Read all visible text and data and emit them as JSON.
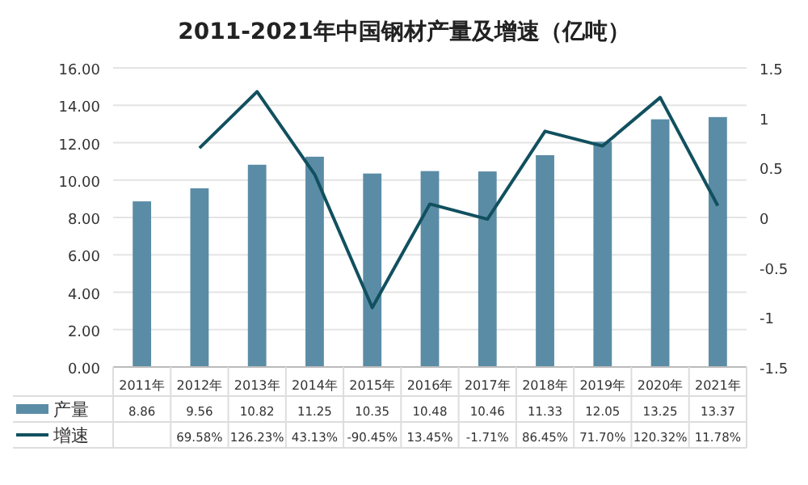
{
  "chart_data": {
    "type": "bar",
    "title": "2011-2021年中国钢材产量及增速（亿吨）",
    "categories": [
      "2011年",
      "2012年",
      "2013年",
      "2014年",
      "2015年",
      "2016年",
      "2017年",
      "2018年",
      "2019年",
      "2020年",
      "2021年"
    ],
    "series": [
      {
        "name": "产量",
        "color": "#5b8ca6",
        "values": [
          8.86,
          9.56,
          10.82,
          11.25,
          10.35,
          10.48,
          10.46,
          11.33,
          12.05,
          13.25,
          13.37
        ],
        "value_labels": [
          "8.86",
          "9.56",
          "10.82",
          "11.25",
          "10.35",
          "10.48",
          "10.46",
          "11.33",
          "12.05",
          "13.25",
          "13.37"
        ]
      },
      {
        "name": "增速",
        "type": "line",
        "axis": "y2",
        "color": "#11505f",
        "values": [
          null,
          0.6958,
          1.2623,
          0.4313,
          -0.9045,
          0.1345,
          -0.0171,
          0.8645,
          0.717,
          1.2032,
          0.1178
        ],
        "value_labels": [
          null,
          "69.58%",
          "126.23%",
          "43.13%",
          "-90.45%",
          "13.45%",
          "-1.71%",
          "86.45%",
          "71.70%",
          "120.32%",
          "11.78%"
        ]
      }
    ],
    "ylim": [
      0,
      16
    ],
    "yticks": [
      {
        "value": 0,
        "label": "0.00"
      },
      {
        "value": 2,
        "label": "2.00"
      },
      {
        "value": 4,
        "label": "4.00"
      },
      {
        "value": 6,
        "label": "6.00"
      },
      {
        "value": 8,
        "label": "8.00"
      },
      {
        "value": 10,
        "label": "10.00"
      },
      {
        "value": 12,
        "label": "12.00"
      },
      {
        "value": 14,
        "label": "14.00"
      },
      {
        "value": 16,
        "label": "16.00"
      }
    ],
    "y2lim": [
      -1.5,
      1.5
    ],
    "y2ticks": [
      -1.5,
      -1,
      -0.5,
      0,
      0.5,
      1,
      1.5
    ],
    "grid": "y",
    "legend": "bottom"
  }
}
